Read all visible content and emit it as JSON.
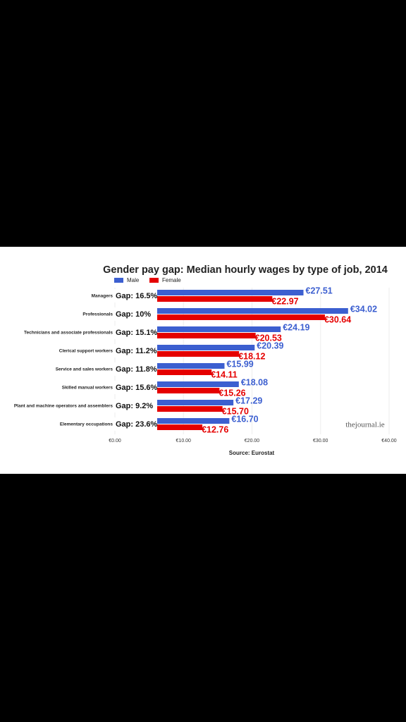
{
  "chart_data": {
    "type": "bar",
    "orientation": "horizontal",
    "title": "Gender pay gap: Median hourly wages by type of job, 2014",
    "categories": [
      "Managers",
      "Professionals",
      "Technicians and associate professionals",
      "Clerical support workers",
      "Service and sales workers",
      "Skilled manual workers",
      "Plant and machine operators and assemblers",
      "Elementary occupations"
    ],
    "annotations": [
      "Gap: 16.5%",
      "Gap: 10%",
      "Gap: 15.1%",
      "Gap: 11.2%",
      "Gap: 11.8%",
      "Gap: 15.6%",
      "Gap: 9.2%",
      "Gap: 23.6%"
    ],
    "series": [
      {
        "name": "Male",
        "color": "#3c5fd0",
        "values": [
          27.51,
          34.02,
          24.19,
          20.39,
          15.99,
          18.08,
          17.29,
          16.7
        ],
        "value_labels": [
          "€27.51",
          "€34.02",
          "€24.19",
          "€20.39",
          "€15.99",
          "€18.08",
          "€17.29",
          "€16.70"
        ]
      },
      {
        "name": "Female",
        "color": "#e50000",
        "values": [
          22.97,
          30.64,
          20.53,
          18.12,
          14.11,
          15.26,
          15.7,
          12.76
        ],
        "value_labels": [
          "€22.97",
          "€30.64",
          "€20.53",
          "€18.12",
          "€14.11",
          "€15.26",
          "€15.70",
          "€12.76"
        ]
      }
    ],
    "xlim": [
      0,
      40
    ],
    "xticks": [
      {
        "value": 0,
        "label": "€0.00"
      },
      {
        "value": 10,
        "label": "€10.00"
      },
      {
        "value": 20,
        "label": "€20.00"
      },
      {
        "value": 30,
        "label": "€30.00"
      },
      {
        "value": 40,
        "label": "€40.00"
      }
    ],
    "grid": true,
    "source": "Source: Eurostat",
    "watermark": "thejournal.ie"
  }
}
